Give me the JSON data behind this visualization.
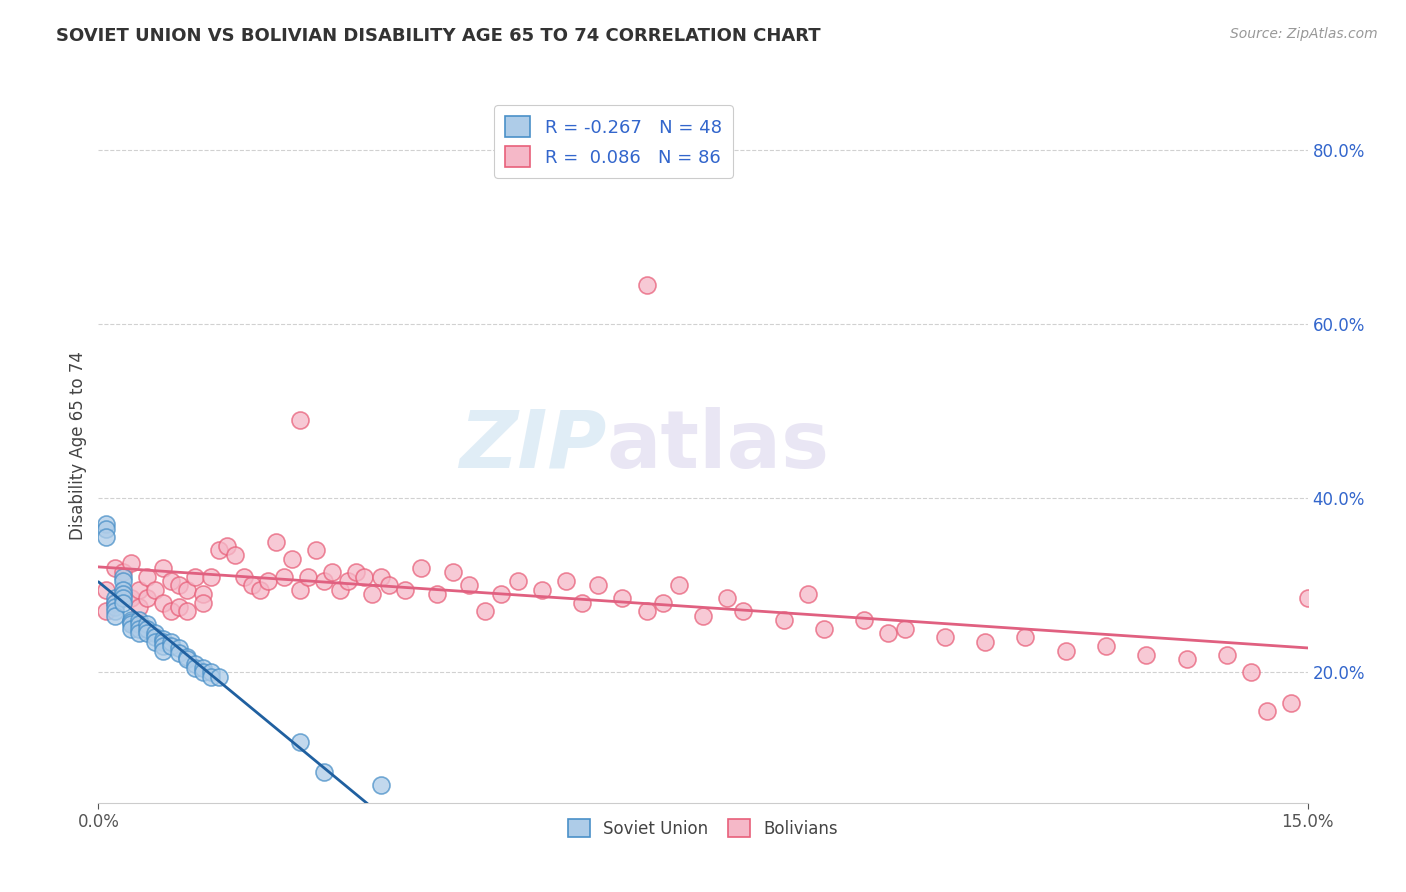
{
  "title": "SOVIET UNION VS BOLIVIAN DISABILITY AGE 65 TO 74 CORRELATION CHART",
  "source": "Source: ZipAtlas.com",
  "ylabel": "Disability Age 65 to 74",
  "xmin": 0.0,
  "xmax": 0.15,
  "ymin": 0.05,
  "ymax": 0.87,
  "yticks": [
    0.2,
    0.4,
    0.6,
    0.8
  ],
  "xticks": [
    0.0,
    0.15
  ],
  "grid_color": "#cccccc",
  "background_color": "#ffffff",
  "soviet_color": "#aecce8",
  "bolivian_color": "#f5b8c8",
  "soviet_edge_color": "#4a90c8",
  "bolivian_edge_color": "#e8607a",
  "soviet_line_color": "#2060a0",
  "bolivian_line_color": "#e06080",
  "legend_R_color": "#3366cc",
  "watermark_zip": "ZIP",
  "watermark_atlas": "atlas",
  "soviet_R": -0.267,
  "soviet_N": 48,
  "bolivian_R": 0.086,
  "bolivian_N": 86,
  "soviet_x": [
    0.001,
    0.001,
    0.001,
    0.002,
    0.002,
    0.002,
    0.002,
    0.002,
    0.003,
    0.003,
    0.003,
    0.003,
    0.003,
    0.003,
    0.004,
    0.004,
    0.004,
    0.004,
    0.005,
    0.005,
    0.005,
    0.005,
    0.006,
    0.006,
    0.006,
    0.007,
    0.007,
    0.007,
    0.008,
    0.008,
    0.008,
    0.008,
    0.009,
    0.009,
    0.01,
    0.01,
    0.011,
    0.011,
    0.012,
    0.012,
    0.013,
    0.013,
    0.014,
    0.014,
    0.015,
    0.025,
    0.028,
    0.035
  ],
  "soviet_y": [
    0.37,
    0.365,
    0.355,
    0.285,
    0.28,
    0.275,
    0.27,
    0.265,
    0.31,
    0.305,
    0.295,
    0.29,
    0.285,
    0.28,
    0.26,
    0.258,
    0.255,
    0.25,
    0.26,
    0.255,
    0.25,
    0.245,
    0.255,
    0.25,
    0.245,
    0.245,
    0.24,
    0.235,
    0.238,
    0.235,
    0.23,
    0.225,
    0.235,
    0.23,
    0.228,
    0.222,
    0.218,
    0.215,
    0.21,
    0.205,
    0.205,
    0.2,
    0.2,
    0.195,
    0.195,
    0.12,
    0.085,
    0.07
  ],
  "bolivian_x": [
    0.001,
    0.001,
    0.002,
    0.002,
    0.003,
    0.003,
    0.004,
    0.004,
    0.005,
    0.005,
    0.006,
    0.006,
    0.007,
    0.008,
    0.008,
    0.009,
    0.009,
    0.01,
    0.01,
    0.011,
    0.011,
    0.012,
    0.013,
    0.013,
    0.014,
    0.015,
    0.016,
    0.017,
    0.018,
    0.019,
    0.02,
    0.021,
    0.022,
    0.023,
    0.024,
    0.025,
    0.026,
    0.027,
    0.028,
    0.029,
    0.03,
    0.031,
    0.032,
    0.033,
    0.034,
    0.035,
    0.036,
    0.038,
    0.04,
    0.042,
    0.044,
    0.046,
    0.048,
    0.05,
    0.052,
    0.055,
    0.058,
    0.06,
    0.062,
    0.065,
    0.068,
    0.07,
    0.072,
    0.075,
    0.078,
    0.08,
    0.085,
    0.088,
    0.09,
    0.095,
    0.098,
    0.1,
    0.105,
    0.11,
    0.115,
    0.12,
    0.125,
    0.13,
    0.135,
    0.14,
    0.143,
    0.145,
    0.148,
    0.15,
    0.025,
    0.068
  ],
  "bolivian_y": [
    0.295,
    0.27,
    0.32,
    0.28,
    0.315,
    0.29,
    0.325,
    0.285,
    0.295,
    0.275,
    0.31,
    0.285,
    0.295,
    0.32,
    0.28,
    0.305,
    0.27,
    0.3,
    0.275,
    0.295,
    0.27,
    0.31,
    0.29,
    0.28,
    0.31,
    0.34,
    0.345,
    0.335,
    0.31,
    0.3,
    0.295,
    0.305,
    0.35,
    0.31,
    0.33,
    0.295,
    0.31,
    0.34,
    0.305,
    0.315,
    0.295,
    0.305,
    0.315,
    0.31,
    0.29,
    0.31,
    0.3,
    0.295,
    0.32,
    0.29,
    0.315,
    0.3,
    0.27,
    0.29,
    0.305,
    0.295,
    0.305,
    0.28,
    0.3,
    0.285,
    0.27,
    0.28,
    0.3,
    0.265,
    0.285,
    0.27,
    0.26,
    0.29,
    0.25,
    0.26,
    0.245,
    0.25,
    0.24,
    0.235,
    0.24,
    0.225,
    0.23,
    0.22,
    0.215,
    0.22,
    0.2,
    0.155,
    0.165,
    0.285,
    0.49,
    0.645
  ]
}
